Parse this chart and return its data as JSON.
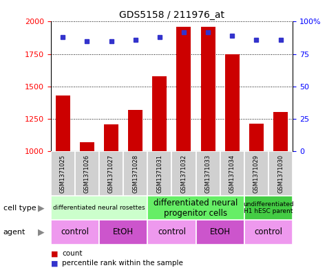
{
  "title": "GDS5158 / 211976_at",
  "samples": [
    "GSM1371025",
    "GSM1371026",
    "GSM1371027",
    "GSM1371028",
    "GSM1371031",
    "GSM1371032",
    "GSM1371033",
    "GSM1371034",
    "GSM1371029",
    "GSM1371030"
  ],
  "counts": [
    1430,
    1070,
    1205,
    1320,
    1580,
    1960,
    1960,
    1750,
    1215,
    1305
  ],
  "percentiles": [
    88,
    85,
    85,
    86,
    88,
    92,
    92,
    89,
    86,
    86
  ],
  "ylim_left": [
    1000,
    2000
  ],
  "ylim_right": [
    0,
    100
  ],
  "yticks_left": [
    1000,
    1250,
    1500,
    1750,
    2000
  ],
  "yticks_right": [
    0,
    25,
    50,
    75,
    100
  ],
  "bar_color": "#cc0000",
  "dot_color": "#3333cc",
  "cell_type_groups": [
    {
      "label": "differentiated neural rosettes",
      "start": 0,
      "end": 4,
      "color": "#ccffcc",
      "fontsize": 6.5
    },
    {
      "label": "differentiated neural\nprogenitor cells",
      "start": 4,
      "end": 8,
      "color": "#66ee66",
      "fontsize": 8.5
    },
    {
      "label": "undifferentiated\nH1 hESC parent",
      "start": 8,
      "end": 10,
      "color": "#44cc44",
      "fontsize": 6.5
    }
  ],
  "agent_groups": [
    {
      "label": "control",
      "start": 0,
      "end": 2,
      "color": "#ee99ee"
    },
    {
      "label": "EtOH",
      "start": 2,
      "end": 4,
      "color": "#cc55cc"
    },
    {
      "label": "control",
      "start": 4,
      "end": 6,
      "color": "#ee99ee"
    },
    {
      "label": "EtOH",
      "start": 6,
      "end": 8,
      "color": "#cc55cc"
    },
    {
      "label": "control",
      "start": 8,
      "end": 10,
      "color": "#ee99ee"
    }
  ],
  "cell_type_label": "cell type",
  "agent_label": "agent",
  "legend_count": "count",
  "legend_percentile": "percentile rank within the sample",
  "background_color": "#ffffff"
}
